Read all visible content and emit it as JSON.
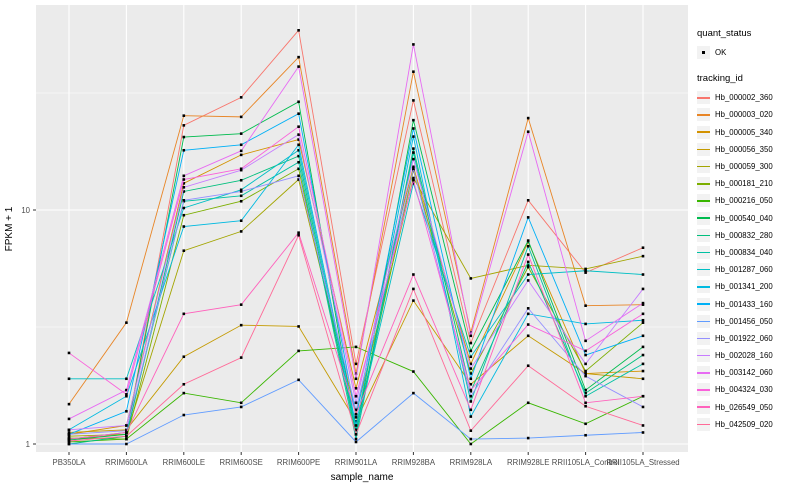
{
  "chart_data": {
    "type": "line",
    "xlabel": "sample_name",
    "ylabel": "FPKM + 1",
    "y_scale": "log10",
    "ylim": [
      1,
      62
    ],
    "y_major_ticks": [
      1,
      10
    ],
    "y_minor_ticks": [
      3.1623,
      31.623
    ],
    "grid": "on",
    "panel_background": "#EBEBEB",
    "gridline_color": "#FFFFFF",
    "tick_label_color": "#4D4D4D",
    "point_color": "#000000",
    "legend_position": "right",
    "categories": [
      "PB350LA",
      "RRIM600LA",
      "RRIM600LE",
      "RRIM600SE",
      "RRIM600PE",
      "RRIM901LA",
      "RRIM928BA",
      "RRIM928LA",
      "RRIM928LE",
      "RRII105LA_Control",
      "RRII105LA_Stressed"
    ],
    "legend": {
      "quant_status": {
        "title": "quant_status",
        "items": [
          {
            "label": "OK",
            "marker": "black-point"
          }
        ]
      },
      "tracking": {
        "title": "tracking_id"
      }
    },
    "series": [
      {
        "name": "Hb_000002_360",
        "color": "#F8766D",
        "values": [
          1.05,
          1.1,
          23.0,
          30.3,
          58.6,
          2.2,
          29.4,
          2.7,
          11.0,
          5.4,
          6.9
        ]
      },
      {
        "name": "Hb_000003_020",
        "color": "#E88526",
        "values": [
          1.48,
          3.3,
          25.3,
          25.0,
          45.0,
          2.0,
          39.0,
          3.0,
          24.7,
          3.9,
          3.94
        ]
      },
      {
        "name": "Hb_000005_340",
        "color": "#D39200",
        "values": [
          1.1,
          1.2,
          13.0,
          17.2,
          20.0,
          1.73,
          15.3,
          2.2,
          7.3,
          2.0,
          2.05
        ]
      },
      {
        "name": "Hb_000056_350",
        "color": "#C49A00",
        "values": [
          1.12,
          1.15,
          2.36,
          3.22,
          3.18,
          1.25,
          4.1,
          1.8,
          2.9,
          2.0,
          1.9
        ]
      },
      {
        "name": "Hb_000059_300",
        "color": "#A3A500",
        "values": [
          1.08,
          1.1,
          6.7,
          8.1,
          13.5,
          1.34,
          13.7,
          5.1,
          5.8,
          5.6,
          6.35
        ]
      },
      {
        "name": "Hb_000181_210",
        "color": "#7CAE00",
        "values": [
          1.06,
          1.05,
          9.5,
          10.9,
          15.0,
          1.16,
          14.8,
          2.0,
          5.7,
          2.05,
          3.3
        ]
      },
      {
        "name": "Hb_000216_050",
        "color": "#39B600",
        "values": [
          1.02,
          1.05,
          1.65,
          1.5,
          2.5,
          2.6,
          2.04,
          1.0,
          1.5,
          1.22,
          1.6
        ]
      },
      {
        "name": "Hb_000540_040",
        "color": "#00BB4E",
        "values": [
          1.04,
          1.1,
          20.5,
          21.2,
          29.0,
          1.12,
          24.2,
          2.5,
          7.4,
          1.7,
          2.6
        ]
      },
      {
        "name": "Hb_000832_280",
        "color": "#00BF7D",
        "values": [
          1.0,
          1.08,
          12.0,
          13.4,
          17.0,
          1.1,
          18.3,
          1.68,
          6.0,
          1.65,
          2.4
        ]
      },
      {
        "name": "Hb_000834_040",
        "color": "#00C1A3",
        "values": [
          1.05,
          1.12,
          10.9,
          11.5,
          16.0,
          1.05,
          17.6,
          1.52,
          7.0,
          1.6,
          2.2
        ]
      },
      {
        "name": "Hb_001287_060",
        "color": "#00BFC4",
        "values": [
          1.9,
          1.9,
          10.2,
          12.2,
          18.0,
          1.15,
          13.0,
          2.36,
          5.3,
          5.5,
          5.3
        ]
      },
      {
        "name": "Hb_001341_200",
        "color": "#00BAE0",
        "values": [
          1.15,
          1.6,
          8.5,
          9.0,
          19.0,
          1.2,
          20.6,
          1.31,
          3.6,
          3.26,
          3.38
        ]
      },
      {
        "name": "Hb_001433_160",
        "color": "#00B0F6",
        "values": [
          1.1,
          1.38,
          18.0,
          19.0,
          25.8,
          1.3,
          22.3,
          1.9,
          9.3,
          2.4,
          2.9
        ]
      },
      {
        "name": "Hb_001456_050",
        "color": "#619CFF",
        "values": [
          1.0,
          1.0,
          1.33,
          1.44,
          1.88,
          1.02,
          1.65,
          1.05,
          1.06,
          1.09,
          1.12
        ]
      },
      {
        "name": "Hb_001922_060",
        "color": "#9590FF",
        "values": [
          1.1,
          1.14,
          11.0,
          12.0,
          14.0,
          1.4,
          15.0,
          1.6,
          3.8,
          1.95,
          1.44
        ]
      },
      {
        "name": "Hb_002028_160",
        "color": "#C77CFF",
        "values": [
          1.15,
          1.2,
          12.5,
          14.8,
          21.0,
          1.5,
          16.5,
          2.1,
          5.0,
          2.2,
          4.6
        ]
      },
      {
        "name": "Hb_003142_060",
        "color": "#E76BF3",
        "values": [
          1.28,
          1.7,
          14.0,
          17.9,
          41.0,
          1.9,
          51.0,
          2.9,
          21.6,
          2.76,
          4.0
        ]
      },
      {
        "name": "Hb_004324_030",
        "color": "#FA62DB",
        "values": [
          2.45,
          1.63,
          13.5,
          15.0,
          22.7,
          1.6,
          13.4,
          1.7,
          3.24,
          2.5,
          3.6
        ]
      },
      {
        "name": "Hb_026549_050",
        "color": "#FF62BC",
        "values": [
          1.05,
          1.12,
          3.6,
          3.94,
          8.0,
          1.34,
          5.3,
          1.4,
          6.45,
          1.5,
          1.6
        ]
      },
      {
        "name": "Hb_042509_020",
        "color": "#FF6A98",
        "values": [
          1.03,
          1.08,
          1.8,
          2.34,
          7.8,
          1.1,
          4.6,
          1.14,
          2.16,
          1.45,
          1.2
        ]
      }
    ]
  }
}
